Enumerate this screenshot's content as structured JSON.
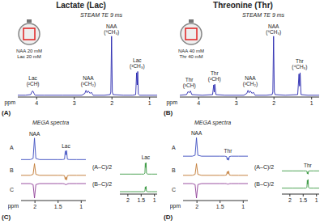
{
  "chart_data": [
    {
      "type": "line",
      "title": "Lactate (Lac)",
      "subtitle": "STEAM TE 9 ms",
      "panel_label": "(A)",
      "inset_labels": [
        "NAA 20 mM",
        "Lac 20 mM"
      ],
      "xlabel": "ppm",
      "xlim": [
        0.8,
        4.5
      ],
      "xticks": [
        1,
        2,
        3,
        4
      ],
      "ylim": [
        0,
        125
      ],
      "tick_labels": "x",
      "color": "#2a2ab0",
      "x": [
        4.5,
        4.3,
        4.16,
        4.13,
        4.11,
        4.09,
        4.07,
        4.04,
        3.8,
        3.3,
        2.8,
        2.72,
        2.69,
        2.66,
        2.63,
        2.58,
        2.55,
        2.5,
        2.2,
        2.05,
        2.03,
        2.01,
        1.99,
        1.97,
        1.7,
        1.45,
        1.37,
        1.345,
        1.33,
        1.315,
        1.3,
        1.27,
        1.1,
        0.8
      ],
      "values": [
        3,
        3,
        4,
        8,
        10,
        9,
        6,
        3,
        3,
        3,
        3,
        6,
        11,
        7,
        10,
        6,
        8,
        3,
        3,
        4,
        8,
        100,
        8,
        4,
        3,
        3,
        4,
        40,
        20,
        42,
        5,
        3,
        3,
        3
      ],
      "annotations": [
        {
          "text": "Lac (²CH)",
          "x": 4.1,
          "y": 14
        },
        {
          "text": "NAA (³CH₂)",
          "x": 2.63,
          "y": 14
        },
        {
          "text": "NAA (⁶CH₃)",
          "x": 2.01,
          "y": 100
        },
        {
          "text": "Lac (³CH₃)",
          "x": 1.33,
          "y": 44
        }
      ]
    },
    {
      "type": "line",
      "title": "Threonine (Thr)",
      "subtitle": "STEAM TE 9 ms",
      "panel_label": "(B)",
      "inset_labels": [
        "NAA 40 mM",
        "Thr 40 mM"
      ],
      "xlabel": "ppm",
      "xlim": [
        0.8,
        4.5
      ],
      "xticks": [
        1,
        2,
        3,
        4
      ],
      "ylim": [
        0,
        125
      ],
      "tick_labels": "x",
      "color": "#2a2ab0",
      "x": [
        4.5,
        4.32,
        4.28,
        4.25,
        4.22,
        4.18,
        3.9,
        3.63,
        3.6,
        3.585,
        3.57,
        3.54,
        3.3,
        2.8,
        2.72,
        2.69,
        2.66,
        2.63,
        2.58,
        2.55,
        2.5,
        2.2,
        2.05,
        2.03,
        2.01,
        1.99,
        1.97,
        1.7,
        1.37,
        1.335,
        1.32,
        1.305,
        1.28,
        1.1,
        0.8
      ],
      "values": [
        3,
        4,
        9,
        7,
        10,
        4,
        3,
        4,
        20,
        8,
        21,
        4,
        3,
        3,
        6,
        11,
        7,
        10,
        6,
        8,
        3,
        3,
        4,
        8,
        100,
        8,
        4,
        3,
        4,
        38,
        18,
        40,
        4,
        3,
        3
      ],
      "annotations": [
        {
          "text": "Thr (³CH)",
          "x": 4.25,
          "y": 12
        },
        {
          "text": "Thr (²CH)",
          "x": 3.58,
          "y": 23
        },
        {
          "text": "NAA (³CH₂)",
          "x": 2.63,
          "y": 14
        },
        {
          "text": "NAA (⁶CH₃)",
          "x": 2.01,
          "y": 100
        },
        {
          "text": "Thr (⁴CH₃)",
          "x": 1.32,
          "y": 42
        }
      ]
    },
    {
      "type": "line",
      "title": "MEGA spectra",
      "panel_label": "(C)",
      "xlim": [
        0.9,
        2.3
      ],
      "ylim": [
        -10,
        110
      ],
      "tick_labels": false,
      "x": [
        2.3,
        2.1,
        2.04,
        2.01,
        1.98,
        1.9,
        1.5,
        1.4,
        1.36,
        1.345,
        1.33,
        1.315,
        1.3,
        1.26,
        1.1,
        0.9
      ],
      "series": [
        {
          "name": "A",
          "color": "#3b4cc0",
          "values": [
            0,
            0,
            5,
            100,
            5,
            0,
            0,
            0,
            2,
            40,
            22,
            42,
            2,
            0,
            0,
            0
          ]
        }
      ],
      "annotations": [
        {
          "text": "NAA",
          "x": 2.01,
          "y": 100
        },
        {
          "text": "Lac",
          "x": 1.33,
          "y": 44
        }
      ]
    },
    {
      "type": "line",
      "xlim": [
        0.9,
        2.3
      ],
      "ylim": [
        -30,
        70
      ],
      "tick_labels": false,
      "x": [
        2.3,
        2.1,
        2.04,
        2.01,
        1.98,
        1.9,
        1.5,
        1.4,
        1.36,
        1.345,
        1.33,
        1.315,
        1.3,
        1.26,
        1.1,
        0.9
      ],
      "series": [
        {
          "name": "B",
          "color": "#c0762e",
          "values": [
            0,
            0,
            5,
            60,
            5,
            0,
            0,
            0,
            -2,
            -22,
            -10,
            -24,
            -2,
            0,
            0,
            0
          ]
        }
      ]
    },
    {
      "type": "line",
      "xlabel": "ppm",
      "xlim": [
        0.9,
        2.3
      ],
      "xticks": [
        2,
        1.5,
        1
      ],
      "ylim": [
        -70,
        10
      ],
      "tick_labels": "x",
      "x": [
        2.3,
        2.1,
        2.04,
        2.01,
        1.98,
        1.9,
        1.5,
        1.4,
        1.36,
        1.345,
        1.33,
        1.315,
        1.3,
        1.26,
        1.1,
        0.9
      ],
      "series": [
        {
          "name": "C",
          "color": "#8e3d96",
          "values": [
            0,
            0,
            -4,
            -60,
            -4,
            0,
            0,
            0,
            -1,
            -5,
            -2,
            -5,
            -1,
            0,
            0,
            0
          ]
        }
      ]
    },
    {
      "type": "line",
      "xlim": [
        0.9,
        2.3
      ],
      "ylim": [
        -5,
        32
      ],
      "tick_labels": false,
      "x": [
        2.3,
        1.9,
        1.5,
        1.4,
        1.36,
        1.345,
        1.33,
        1.315,
        1.3,
        1.26,
        1.1,
        0.9
      ],
      "series": [
        {
          "name": "(A–C)/2",
          "color": "#3c9a44",
          "values": [
            0,
            0,
            0,
            0,
            2,
            25,
            15,
            26,
            2,
            0,
            0,
            0
          ]
        }
      ],
      "annotations": [
        {
          "text": "Lac",
          "x": 1.33,
          "y": 28
        }
      ]
    },
    {
      "type": "line",
      "xlim": [
        0.9,
        2.3
      ],
      "xticks": [
        2,
        1.5,
        1
      ],
      "ylim": [
        -5,
        32
      ],
      "tick_labels": "x",
      "x": [
        2.3,
        1.9,
        1.5,
        1.4,
        1.36,
        1.345,
        1.33,
        1.315,
        1.3,
        1.26,
        1.1,
        0.9
      ],
      "series": [
        {
          "name": "(B–C)/2",
          "color": "#3c9a44",
          "values": [
            0,
            0,
            0,
            0,
            1,
            10,
            5,
            11,
            1,
            0,
            0,
            0
          ]
        }
      ]
    },
    {
      "type": "line",
      "title": "MEGA spectra",
      "panel_label": "(D)",
      "xlim": [
        0.9,
        2.3
      ],
      "ylim": [
        -30,
        110
      ],
      "tick_labels": false,
      "x": [
        2.3,
        2.1,
        2.04,
        2.01,
        1.98,
        1.9,
        1.5,
        1.4,
        1.36,
        1.345,
        1.33,
        1.315,
        1.3,
        1.26,
        1.1,
        0.9
      ],
      "series": [
        {
          "name": "A",
          "color": "#3b4cc0",
          "values": [
            0,
            0,
            5,
            100,
            5,
            0,
            0,
            0,
            -2,
            -20,
            -8,
            -22,
            -2,
            0,
            0,
            0
          ]
        }
      ],
      "annotations": [
        {
          "text": "NAA",
          "x": 2.01,
          "y": 100
        },
        {
          "text": "Thr",
          "x": 1.33,
          "y": 4
        }
      ]
    },
    {
      "type": "line",
      "xlim": [
        0.9,
        2.3
      ],
      "ylim": [
        -30,
        70
      ],
      "tick_labels": false,
      "x": [
        2.3,
        2.1,
        2.04,
        2.01,
        1.98,
        1.9,
        1.5,
        1.4,
        1.36,
        1.345,
        1.33,
        1.315,
        1.3,
        1.26,
        1.1,
        0.9
      ],
      "series": [
        {
          "name": "B",
          "color": "#c0762e",
          "values": [
            0,
            0,
            5,
            60,
            5,
            0,
            0,
            0,
            2,
            20,
            8,
            22,
            2,
            0,
            0,
            0
          ]
        }
      ]
    },
    {
      "type": "line",
      "xlabel": "ppm",
      "xlim": [
        0.9,
        2.3
      ],
      "xticks": [
        2,
        1.5,
        1
      ],
      "ylim": [
        -70,
        10
      ],
      "tick_labels": "x",
      "x": [
        2.3,
        2.1,
        2.04,
        2.01,
        1.98,
        1.9,
        1.5,
        1.4,
        1.36,
        1.345,
        1.33,
        1.315,
        1.3,
        1.26,
        1.1,
        0.9
      ],
      "series": [
        {
          "name": "C",
          "color": "#8e3d96",
          "values": [
            0,
            0,
            -4,
            -60,
            -4,
            0,
            0,
            0,
            0,
            -3,
            -1,
            -3,
            0,
            0,
            0,
            0
          ]
        }
      ]
    },
    {
      "type": "line",
      "xlim": [
        0.9,
        2.3
      ],
      "ylim": [
        -15,
        30
      ],
      "tick_labels": false,
      "x": [
        2.3,
        1.9,
        1.5,
        1.4,
        1.36,
        1.345,
        1.33,
        1.315,
        1.3,
        1.26,
        1.1,
        0.9
      ],
      "series": [
        {
          "name": "(A–C)/2",
          "color": "#3c9a44",
          "values": [
            0,
            0,
            0,
            0,
            -1,
            -8,
            -3,
            -9,
            -1,
            0,
            0,
            0
          ]
        }
      ],
      "annotations": [
        {
          "text": "Thr",
          "x": 1.33,
          "y": 2
        }
      ]
    },
    {
      "type": "line",
      "xlim": [
        0.9,
        2.3
      ],
      "xticks": [
        2,
        1.5,
        1
      ],
      "ylim": [
        -15,
        30
      ],
      "tick_labels": "x",
      "x": [
        2.3,
        1.9,
        1.5,
        1.4,
        1.36,
        1.345,
        1.33,
        1.315,
        1.3,
        1.26,
        1.1,
        0.9
      ],
      "series": [
        {
          "name": "(B–C)/2",
          "color": "#3c9a44",
          "values": [
            0,
            0,
            0,
            0,
            2,
            20,
            10,
            22,
            2,
            0,
            0,
            0
          ]
        }
      ]
    }
  ]
}
